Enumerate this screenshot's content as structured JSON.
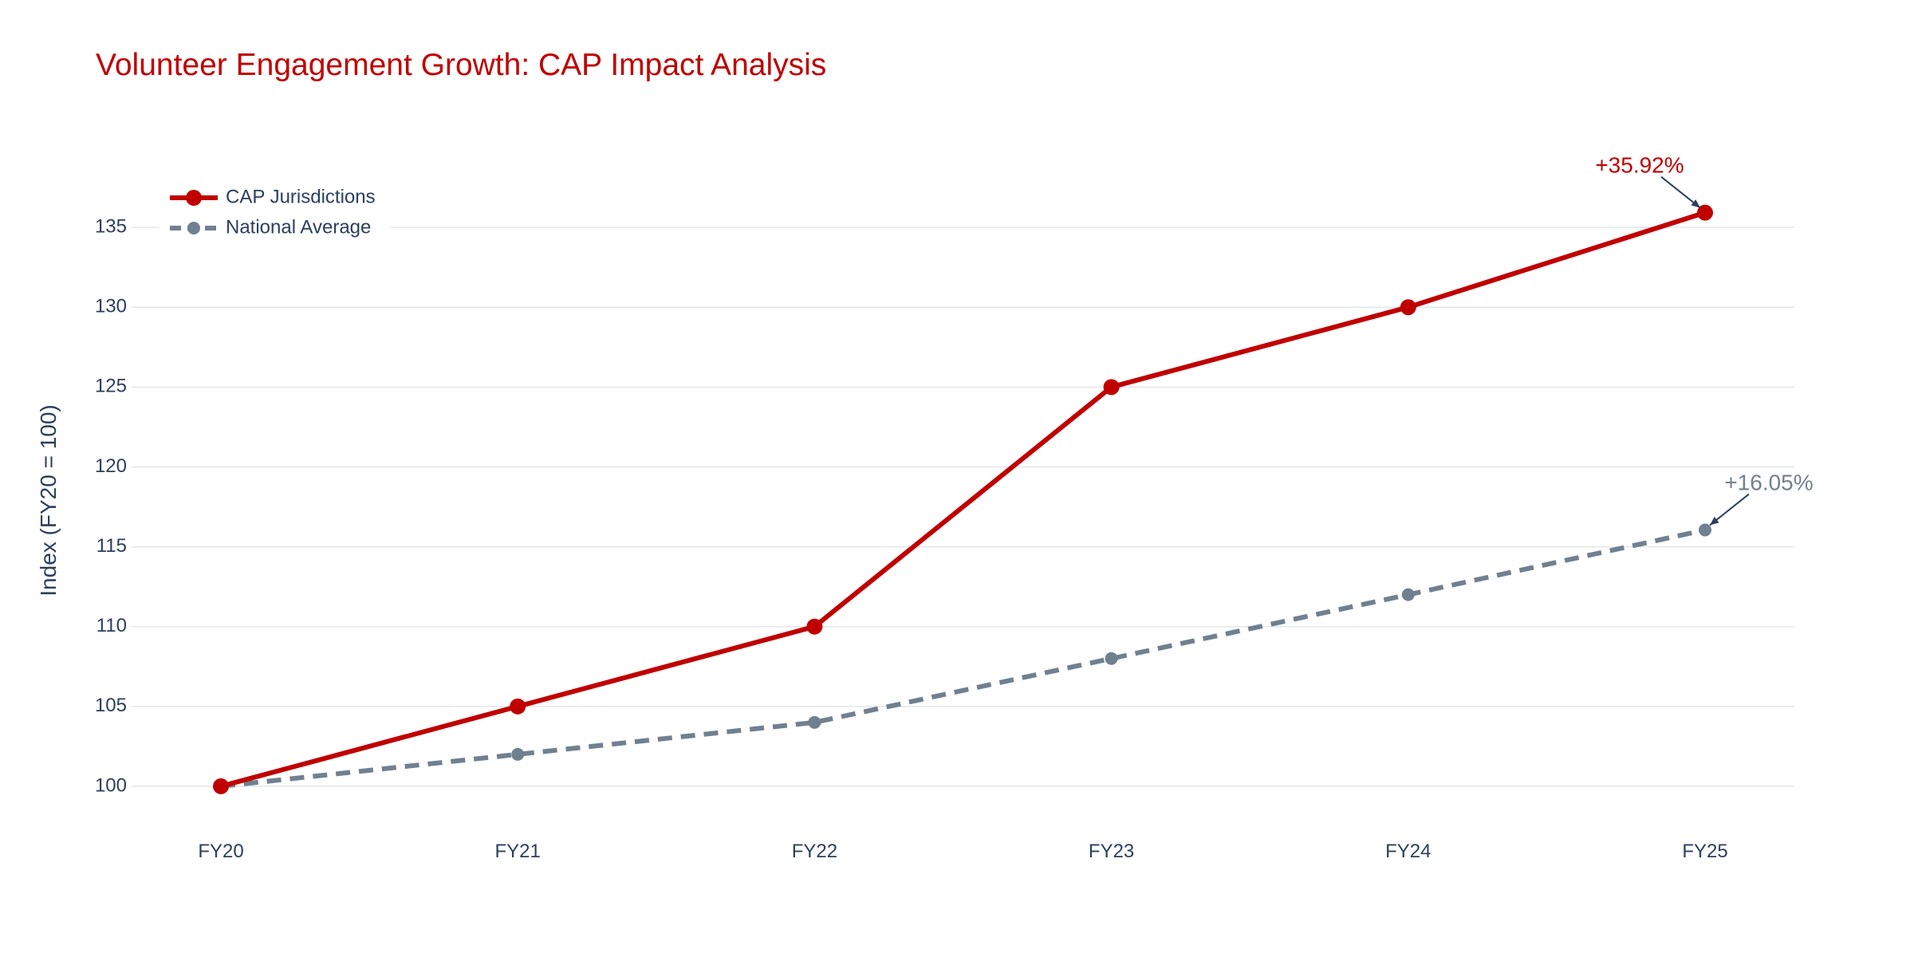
{
  "colors": {
    "title": "#c00000",
    "cap": "#c00000",
    "national": "#708090",
    "axis_text": "#2a3f5f",
    "grid": "#e3e6ea",
    "arrow": "#2a3f5f"
  },
  "chart_data": {
    "type": "line",
    "title": "Volunteer Engagement Growth: CAP Impact Analysis",
    "xlabel": "",
    "ylabel": "Index (FY20 = 100)",
    "categories": [
      "FY20",
      "FY21",
      "FY22",
      "FY23",
      "FY24",
      "FY25"
    ],
    "ylim": [
      97.3,
      138.5
    ],
    "yticks": [
      100,
      105,
      110,
      115,
      120,
      125,
      130,
      135
    ],
    "grid": true,
    "legend_position": "top-left",
    "series": [
      {
        "name": "CAP Jurisdictions",
        "values": [
          100,
          105,
          110,
          125,
          130,
          135.92
        ],
        "line_style": "solid",
        "color": "#c00000"
      },
      {
        "name": "National Average",
        "values": [
          100,
          102,
          104,
          108,
          112,
          116.05
        ],
        "line_style": "dashed",
        "color": "#708090"
      }
    ],
    "annotations": [
      {
        "series_index": 0,
        "category": "FY25",
        "text": "+35.92%",
        "color": "#c00000"
      },
      {
        "series_index": 1,
        "category": "FY25",
        "text": "+16.05%",
        "color": "#708090"
      }
    ]
  }
}
